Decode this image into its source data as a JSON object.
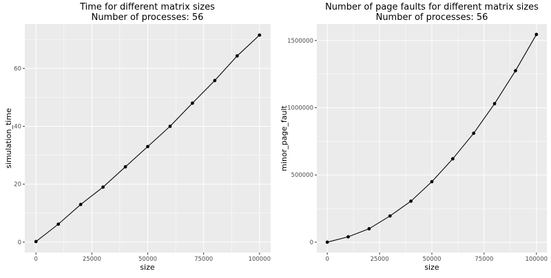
{
  "chart_data": [
    {
      "type": "line",
      "title": "Time for different matrix sizes",
      "subtitle": "Number of processes: 56",
      "xlabel": "size",
      "ylabel": "simulation_time",
      "x": [
        0,
        10000,
        20000,
        30000,
        40000,
        50000,
        60000,
        70000,
        80000,
        90000,
        100000
      ],
      "series": [
        {
          "values": [
            0.2,
            6.2,
            13.0,
            19.0,
            26.0,
            33.0,
            40.0,
            48.0,
            55.8,
            64.3,
            71.5
          ]
        }
      ],
      "xlim": [
        -5000,
        105000
      ],
      "ylim": [
        -3.6,
        75.3
      ],
      "xticks": [
        0,
        25000,
        50000,
        75000,
        100000
      ],
      "xtick_labels": [
        "0",
        "25000",
        "50000",
        "75000",
        "100000"
      ],
      "yticks": [
        0,
        20,
        40,
        60
      ],
      "ytick_labels": [
        "0",
        "20",
        "40",
        "60"
      ],
      "grid": true,
      "points": true,
      "line_color": "#000000",
      "panel_color": "#ebebeb",
      "grid_color": "#ffffff"
    },
    {
      "type": "line",
      "title": "Number of page faults for different matrix sizes",
      "subtitle": "Number of processes: 56",
      "xlabel": "size",
      "ylabel": "minor_page_fault",
      "x": [
        0,
        10000,
        20000,
        30000,
        40000,
        50000,
        60000,
        70000,
        80000,
        90000,
        100000
      ],
      "series": [
        {
          "values": [
            0,
            40000,
            100000,
            195000,
            305000,
            450000,
            620000,
            810000,
            1030000,
            1275000,
            1545000
          ]
        }
      ],
      "xlim": [
        -5000,
        105000
      ],
      "ylim": [
        -77000,
        1622000
      ],
      "xticks": [
        0,
        25000,
        50000,
        75000,
        100000
      ],
      "xtick_labels": [
        "0",
        "25000",
        "50000",
        "75000",
        "100000"
      ],
      "yticks": [
        0,
        500000,
        1000000,
        1500000
      ],
      "ytick_labels": [
        "0",
        "500000",
        "1000000",
        "1500000"
      ],
      "grid": true,
      "points": true,
      "line_color": "#000000",
      "panel_color": "#ebebeb",
      "grid_color": "#ffffff"
    }
  ]
}
